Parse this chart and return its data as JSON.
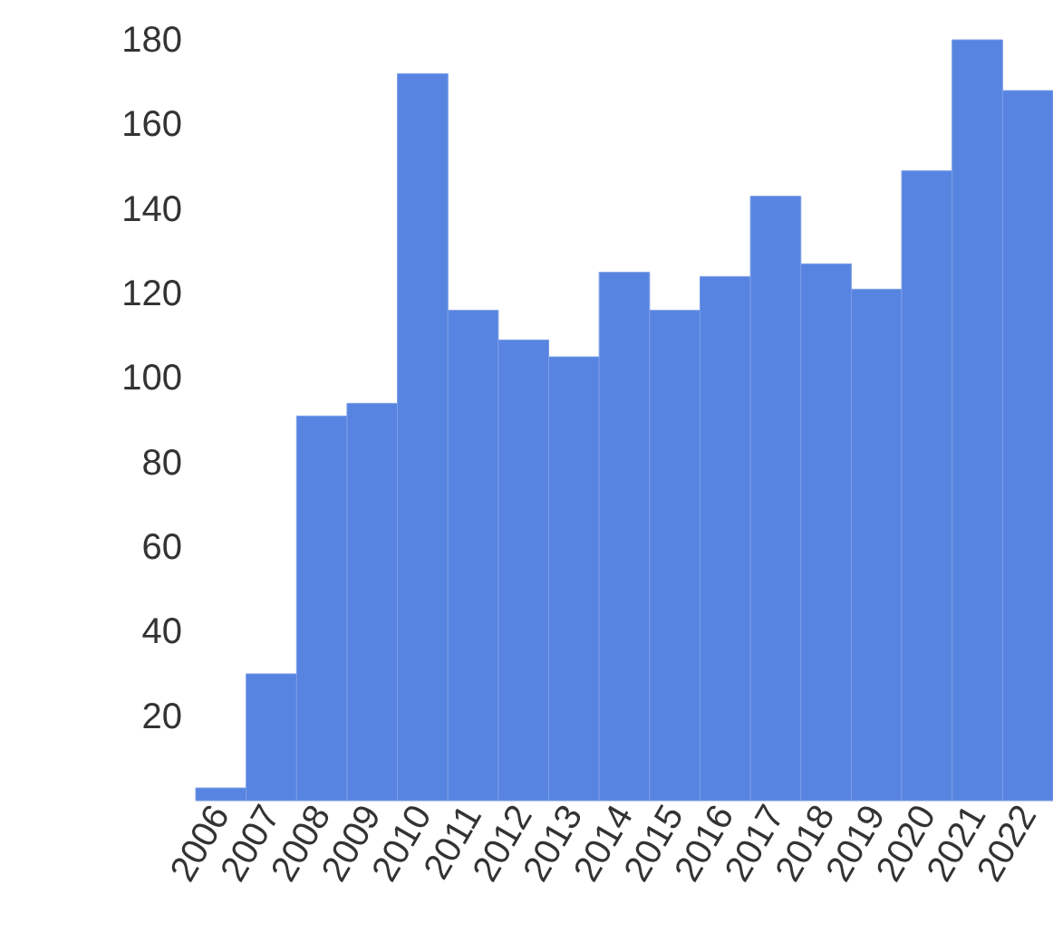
{
  "chart_data": {
    "type": "bar",
    "categories": [
      "2006",
      "2007",
      "2008",
      "2009",
      "2010",
      "2011",
      "2012",
      "2013",
      "2014",
      "2015",
      "2016",
      "2017",
      "2018",
      "2019",
      "2020",
      "2021",
      "2022"
    ],
    "values": [
      3,
      30,
      91,
      94,
      172,
      116,
      109,
      105,
      125,
      116,
      124,
      143,
      127,
      121,
      149,
      180,
      168
    ],
    "color": "#5784e0",
    "ylim": [
      0,
      180
    ],
    "yticks": [
      20,
      40,
      60,
      80,
      100,
      120,
      140,
      160,
      180
    ],
    "grid": false
  }
}
